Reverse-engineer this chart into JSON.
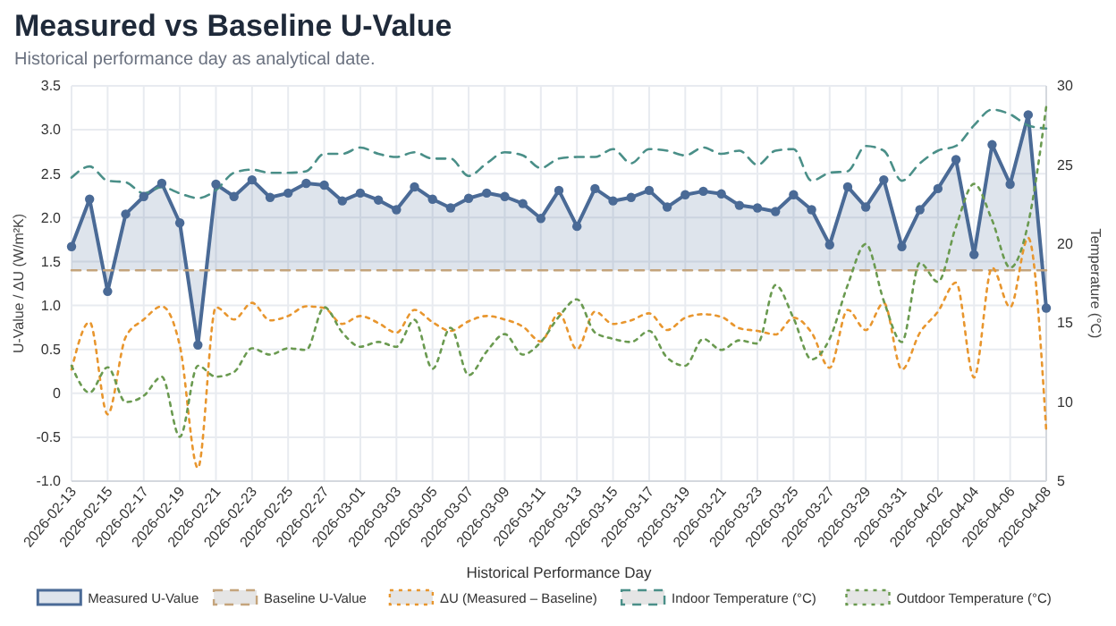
{
  "chart_data": {
    "type": "line",
    "title": "Measured vs Baseline U-Value",
    "subtitle": "Historical performance day as analytical date.",
    "xlabel": "Historical Performance Day",
    "ylabel": "U-Value / ΔU (W/m²K)",
    "y2label": "Temperature (°C)",
    "x": [
      "2026-02-13",
      "2026-02-14",
      "2026-02-15",
      "2026-02-16",
      "2026-02-17",
      "2026-02-18",
      "2026-02-19",
      "2026-02-20",
      "2026-02-21",
      "2026-02-22",
      "2026-02-23",
      "2026-02-24",
      "2026-02-25",
      "2026-02-26",
      "2026-02-27",
      "2026-02-28",
      "2026-03-01",
      "2026-03-02",
      "2026-03-03",
      "2026-03-04",
      "2026-03-05",
      "2026-03-06",
      "2026-03-07",
      "2026-03-08",
      "2026-03-09",
      "2026-03-10",
      "2026-03-11",
      "2026-03-12",
      "2026-03-13",
      "2026-03-14",
      "2026-03-15",
      "2026-03-16",
      "2026-03-17",
      "2026-03-18",
      "2026-03-19",
      "2026-03-20",
      "2026-03-21",
      "2026-03-22",
      "2026-03-23",
      "2026-03-24",
      "2026-03-25",
      "2026-03-26",
      "2026-03-27",
      "2026-03-28",
      "2026-03-29",
      "2026-03-30",
      "2026-03-31",
      "2026-04-01",
      "2026-04-02",
      "2026-04-03",
      "2026-04-04",
      "2026-04-05",
      "2026-04-06",
      "2026-04-07",
      "2026-04-08"
    ],
    "xlim": [
      "2026-02-13",
      "2026-04-08"
    ],
    "xticks": [
      "2026-02-13",
      "2026-02-15",
      "2026-02-17",
      "2026-02-19",
      "2026-02-21",
      "2026-02-23",
      "2026-02-25",
      "2026-02-27",
      "2026-03-01",
      "2026-03-03",
      "2026-03-05",
      "2026-03-07",
      "2026-03-09",
      "2026-03-11",
      "2026-03-13",
      "2026-03-15",
      "2026-03-17",
      "2026-03-19",
      "2026-03-21",
      "2026-03-23",
      "2026-03-25",
      "2026-03-27",
      "2026-03-29",
      "2026-03-31",
      "2026-04-02",
      "2026-04-04",
      "2026-04-06",
      "2026-04-08"
    ],
    "ylim": [
      -1,
      3.5
    ],
    "yticks": [
      {
        "value": -1,
        "label": "-1.0"
      },
      {
        "value": -0.5,
        "label": "-0.5"
      },
      0,
      0.5,
      {
        "value": 1,
        "label": "1.0"
      },
      1.5,
      {
        "value": 2,
        "label": "2.0"
      },
      2.5,
      {
        "value": 3,
        "label": "3.0"
      },
      3.5
    ],
    "y2lim": [
      5,
      30
    ],
    "y2ticks": [
      5,
      10,
      15,
      20,
      25,
      30
    ],
    "grid": true,
    "legend": "bottom",
    "series": [
      {
        "name": "Measured U-Value",
        "type": "area",
        "color": "#4a6a96",
        "marker": "circle",
        "line_style": "solid",
        "values": [
          1.67,
          2.21,
          1.16,
          2.04,
          2.24,
          2.39,
          1.94,
          0.55,
          2.38,
          2.24,
          2.43,
          2.23,
          2.28,
          2.39,
          2.37,
          2.19,
          2.28,
          2.2,
          2.09,
          2.35,
          2.21,
          2.11,
          2.22,
          2.28,
          2.24,
          2.16,
          1.99,
          2.31,
          1.9,
          2.33,
          2.19,
          2.23,
          2.31,
          2.12,
          2.26,
          2.3,
          2.27,
          2.14,
          2.11,
          2.07,
          2.26,
          2.09,
          1.69,
          2.35,
          2.12,
          2.43,
          1.67,
          2.09,
          2.33,
          2.66,
          1.58,
          2.83,
          2.38,
          3.17,
          0.97
        ]
      },
      {
        "name": "Baseline U-Value",
        "type": "line",
        "color": "#c4a47c",
        "marker": "none",
        "line_style": "dashed",
        "values": [
          1.4,
          1.4,
          1.4,
          1.4,
          1.4,
          1.4,
          1.4,
          1.4,
          1.4,
          1.4,
          1.4,
          1.4,
          1.4,
          1.4,
          1.4,
          1.4,
          1.4,
          1.4,
          1.4,
          1.4,
          1.4,
          1.4,
          1.4,
          1.4,
          1.4,
          1.4,
          1.4,
          1.4,
          1.4,
          1.4,
          1.4,
          1.4,
          1.4,
          1.4,
          1.4,
          1.4,
          1.4,
          1.4,
          1.4,
          1.4,
          1.4,
          1.4,
          1.4,
          1.4,
          1.4,
          1.4,
          1.4,
          1.4,
          1.4,
          1.4,
          1.4,
          1.4,
          1.4,
          1.4,
          1.4
        ]
      },
      {
        "name": "ΔU (Measured – Baseline)",
        "type": "line",
        "color": "#e8962e",
        "marker": "none",
        "line_style": "dotted",
        "values": [
          0.27,
          0.81,
          -0.24,
          0.64,
          0.84,
          0.99,
          0.54,
          -0.85,
          0.98,
          0.84,
          1.03,
          0.83,
          0.88,
          0.99,
          0.97,
          0.79,
          0.88,
          0.8,
          0.69,
          0.95,
          0.81,
          0.71,
          0.82,
          0.88,
          0.84,
          0.76,
          0.59,
          0.91,
          0.5,
          0.93,
          0.79,
          0.83,
          0.91,
          0.72,
          0.86,
          0.9,
          0.87,
          0.74,
          0.71,
          0.67,
          0.86,
          0.69,
          0.29,
          0.95,
          0.72,
          1.03,
          0.27,
          0.69,
          0.93,
          1.26,
          0.18,
          1.43,
          0.98,
          1.77,
          -0.43
        ]
      },
      {
        "name": "Indoor Temperature (°C)",
        "type": "line",
        "axis": "y2",
        "color": "#4a8f88",
        "marker": "none",
        "line_style": "dashed",
        "values": [
          24.2,
          24.9,
          24.0,
          23.9,
          23.2,
          23.6,
          23.2,
          22.9,
          23.4,
          24.5,
          24.7,
          24.5,
          24.5,
          24.6,
          25.7,
          25.7,
          26.1,
          25.7,
          25.5,
          25.8,
          25.4,
          25.4,
          24.3,
          25.1,
          25.8,
          25.6,
          24.8,
          25.4,
          25.5,
          25.5,
          26.0,
          25.1,
          26.0,
          25.9,
          25.6,
          26.1,
          25.7,
          25.9,
          25.0,
          25.9,
          26.0,
          24.0,
          24.5,
          24.6,
          26.2,
          25.9,
          24.0,
          25.1,
          25.9,
          26.2,
          27.5,
          28.5,
          28.2,
          27.5,
          27.3
        ]
      },
      {
        "name": "Outdoor Temperature (°C)",
        "type": "line",
        "axis": "y2",
        "color": "#6a9a50",
        "marker": "none",
        "line_style": "dotted",
        "values": [
          12.3,
          10.6,
          12.2,
          10.0,
          10.4,
          11.6,
          7.8,
          12.3,
          11.6,
          11.9,
          13.4,
          13.0,
          13.4,
          13.3,
          16.0,
          14.4,
          13.5,
          13.8,
          13.5,
          15.2,
          12.1,
          14.7,
          11.7,
          13.2,
          14.3,
          13.0,
          13.8,
          15.4,
          16.5,
          14.4,
          14.0,
          13.8,
          14.5,
          12.8,
          12.3,
          14.0,
          13.3,
          13.9,
          13.7,
          17.4,
          15.3,
          12.7,
          14.0,
          17.4,
          20.0,
          16.4,
          13.8,
          18.8,
          17.6,
          21.1,
          23.8,
          21.5,
          18.5,
          21.3,
          28.7
        ]
      }
    ]
  }
}
